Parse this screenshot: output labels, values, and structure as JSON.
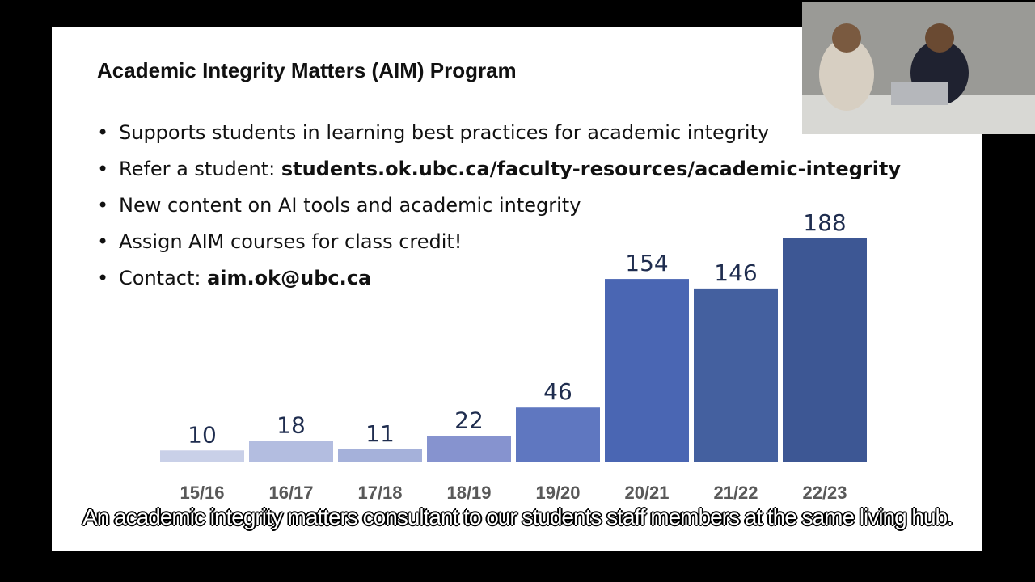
{
  "slide": {
    "title": "Academic Integrity Matters (AIM) Program",
    "bullets": [
      [
        {
          "text": "Supports students in learning best practices for academic integrity",
          "bold": false
        }
      ],
      [
        {
          "text": "Refer a student:",
          "bold": false
        },
        {
          "text": "students.ok.ubc.ca/faculty-resources/academic-integrity",
          "bold": true
        }
      ],
      [
        {
          "text": "New content on AI tools and academic integrity",
          "bold": false
        }
      ],
      [
        {
          "text": "Assign AIM courses for class credit!",
          "bold": false
        }
      ],
      [
        {
          "text": "Contact:",
          "bold": false
        },
        {
          "text": "aim.ok@ubc.ca",
          "bold": true
        }
      ]
    ]
  },
  "chart_data": {
    "type": "bar",
    "categories": [
      "15/16",
      "16/17",
      "17/18",
      "18/19",
      "19/20",
      "20/21",
      "21/22",
      "22/23"
    ],
    "values": [
      10,
      18,
      11,
      22,
      46,
      154,
      146,
      188
    ],
    "colors": [
      "#c9d0e8",
      "#b3bde0",
      "#a5b1da",
      "#8693cf",
      "#5f77c0",
      "#4a66b3",
      "#44609f",
      "#3d5794"
    ]
  },
  "caption": "An academic integrity matters consultant to our students staff members at the same living hub."
}
